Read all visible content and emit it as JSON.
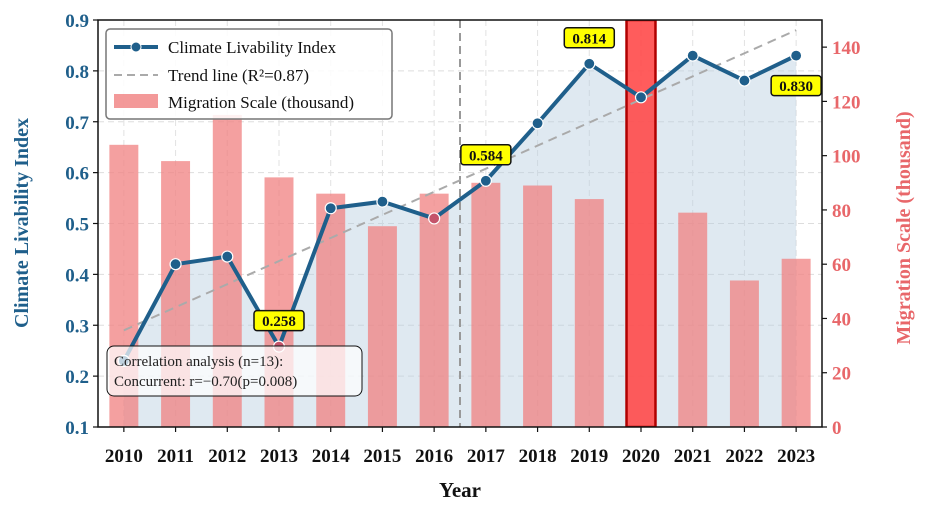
{
  "chart_data": {
    "type": "bar+line",
    "title": "",
    "xlabel": "Year",
    "ylabel_left": "Climate Livability Index",
    "ylabel_right": "Migration Scale (thousand)",
    "ylim_left": [
      0.1,
      0.9
    ],
    "ylim_right": [
      0,
      150
    ],
    "yticks_left": [
      "0.1",
      "0.2",
      "0.3",
      "0.4",
      "0.5",
      "0.6",
      "0.7",
      "0.8",
      "0.9"
    ],
    "yticks_right": [
      "0",
      "20",
      "40",
      "60",
      "80",
      "100",
      "120",
      "140"
    ],
    "categories": [
      "2010",
      "2011",
      "2012",
      "2013",
      "2014",
      "2015",
      "2016",
      "2017",
      "2018",
      "2019",
      "2020",
      "2021",
      "2022",
      "2023"
    ],
    "grid": true,
    "legend_position": "top-left",
    "series": [
      {
        "name": "Climate Livability Index",
        "type": "line",
        "axis": "left",
        "color": "#1f5f8b",
        "values": [
          0.23,
          0.42,
          0.435,
          0.258,
          0.53,
          0.543,
          0.51,
          0.584,
          0.697,
          0.814,
          0.748,
          0.83,
          0.781,
          0.83
        ]
      },
      {
        "name": "Migration Scale (thousand)",
        "type": "bar",
        "axis": "right",
        "color": "#f08080",
        "highlight_color": "#ff4a4a",
        "highlight_category": "2020",
        "values": [
          104,
          98,
          115,
          92,
          86,
          74,
          86,
          90,
          89,
          84,
          150,
          79,
          54,
          62
        ]
      },
      {
        "name": "Trend line (R²=0.87)",
        "type": "trend",
        "axis": "left",
        "color": "#aaaaaa",
        "start": 0.29,
        "end": 0.88
      }
    ],
    "vertical_divider_after": "2016",
    "annotations": [
      {
        "category": "2013",
        "text": "0.258"
      },
      {
        "category": "2017",
        "text": "0.584"
      },
      {
        "category": "2019",
        "text": "0.814"
      },
      {
        "category": "2023",
        "text": "0.830"
      }
    ],
    "correlation_box": {
      "line1": "Correlation analysis (n=13):",
      "line2": "Concurrent: r=−0.70(p=0.008)"
    }
  }
}
